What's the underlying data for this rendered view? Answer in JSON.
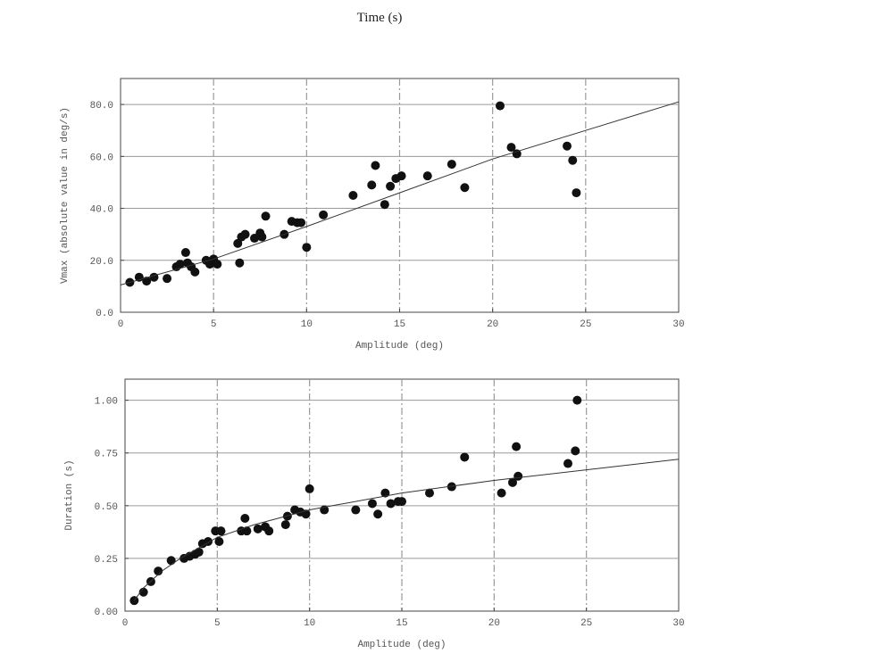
{
  "page_title": "Time (s)",
  "chart_data": [
    {
      "type": "scatter",
      "title": "",
      "xlabel": "Amplitude (deg)",
      "ylabel": "Vmax (absolute value in deg/s)",
      "xlim": [
        0,
        30
      ],
      "ylim": [
        0,
        90
      ],
      "xticks": [
        "0",
        "5",
        "10",
        "15",
        "20",
        "25",
        "30"
      ],
      "xtick_values": [
        0,
        5,
        10,
        15,
        20,
        25,
        30
      ],
      "yticks": [
        "0.0",
        "20.0",
        "40.0",
        "60.0",
        "80.0"
      ],
      "ytick_values": [
        0,
        20,
        40,
        60,
        80
      ],
      "grid": true,
      "series": [
        {
          "kind": "points",
          "x": [
            0.5,
            1.0,
            1.4,
            1.8,
            2.5,
            3.0,
            3.2,
            3.5,
            3.6,
            3.8,
            4.0,
            4.6,
            4.8,
            5.0,
            5.2,
            6.3,
            6.5,
            6.7,
            6.4,
            7.2,
            7.5,
            7.6,
            7.8,
            8.8,
            9.2,
            9.5,
            9.7,
            10.0,
            10.9,
            12.5,
            13.5,
            13.7,
            14.2,
            14.5,
            14.8,
            15.1,
            16.5,
            17.8,
            18.5,
            20.4,
            21.0,
            21.3,
            24.0,
            24.3,
            24.5
          ],
          "y": [
            11.5,
            13.5,
            12,
            13.5,
            13,
            17.5,
            18.5,
            23,
            19,
            17.5,
            15.5,
            20,
            18.5,
            20.5,
            18.5,
            26.5,
            29,
            30,
            19,
            28.5,
            30.5,
            29,
            37,
            30,
            35,
            34.5,
            34.5,
            25,
            37.5,
            45,
            49,
            56.5,
            41.5,
            48.5,
            51.5,
            52.5,
            52.5,
            57,
            48,
            79.5,
            63.5,
            61,
            64,
            58.5,
            46
          ]
        },
        {
          "kind": "fit-line",
          "x": [
            0,
            5,
            10,
            15,
            20,
            25,
            30
          ],
          "y": [
            10.5,
            20.5,
            33,
            46,
            59,
            70,
            81
          ]
        }
      ]
    },
    {
      "type": "scatter",
      "title": "",
      "xlabel": "Amplitude (deg)",
      "ylabel": "Duration (s)",
      "xlim": [
        0,
        30
      ],
      "ylim": [
        0,
        1.1
      ],
      "xticks": [
        "0",
        "5",
        "10",
        "15",
        "20",
        "25",
        "30"
      ],
      "xtick_values": [
        0,
        5,
        10,
        15,
        20,
        25,
        30
      ],
      "yticks": [
        "0.00",
        "0.25",
        "0.50",
        "0.75",
        "1.00"
      ],
      "ytick_values": [
        0,
        0.25,
        0.5,
        0.75,
        1.0
      ],
      "grid": true,
      "series": [
        {
          "kind": "points",
          "x": [
            0.5,
            1.0,
            1.4,
            1.8,
            2.5,
            3.2,
            3.5,
            3.8,
            4.0,
            4.2,
            4.5,
            4.9,
            5.1,
            5.2,
            6.3,
            6.5,
            6.6,
            7.2,
            7.6,
            7.8,
            8.7,
            8.8,
            9.2,
            9.5,
            9.8,
            10.0,
            10.8,
            12.5,
            13.4,
            13.7,
            14.1,
            14.4,
            14.8,
            15.0,
            16.5,
            17.7,
            18.4,
            20.4,
            21.0,
            21.2,
            21.3,
            24.0,
            24.4,
            24.5
          ],
          "y": [
            0.05,
            0.09,
            0.14,
            0.19,
            0.24,
            0.25,
            0.26,
            0.27,
            0.28,
            0.32,
            0.33,
            0.38,
            0.33,
            0.38,
            0.38,
            0.44,
            0.38,
            0.39,
            0.4,
            0.38,
            0.41,
            0.45,
            0.48,
            0.47,
            0.46,
            0.58,
            0.48,
            0.48,
            0.51,
            0.46,
            0.56,
            0.51,
            0.52,
            0.52,
            0.56,
            0.59,
            0.73,
            0.56,
            0.61,
            0.78,
            0.64,
            0.7,
            0.76,
            1.0
          ]
        },
        {
          "kind": "fit-line",
          "x": [
            0.5,
            1,
            2,
            3,
            4,
            5,
            7,
            10,
            15,
            20,
            25,
            30
          ],
          "y": [
            0.05,
            0.11,
            0.19,
            0.25,
            0.3,
            0.35,
            0.41,
            0.48,
            0.56,
            0.62,
            0.67,
            0.72
          ]
        }
      ]
    }
  ]
}
